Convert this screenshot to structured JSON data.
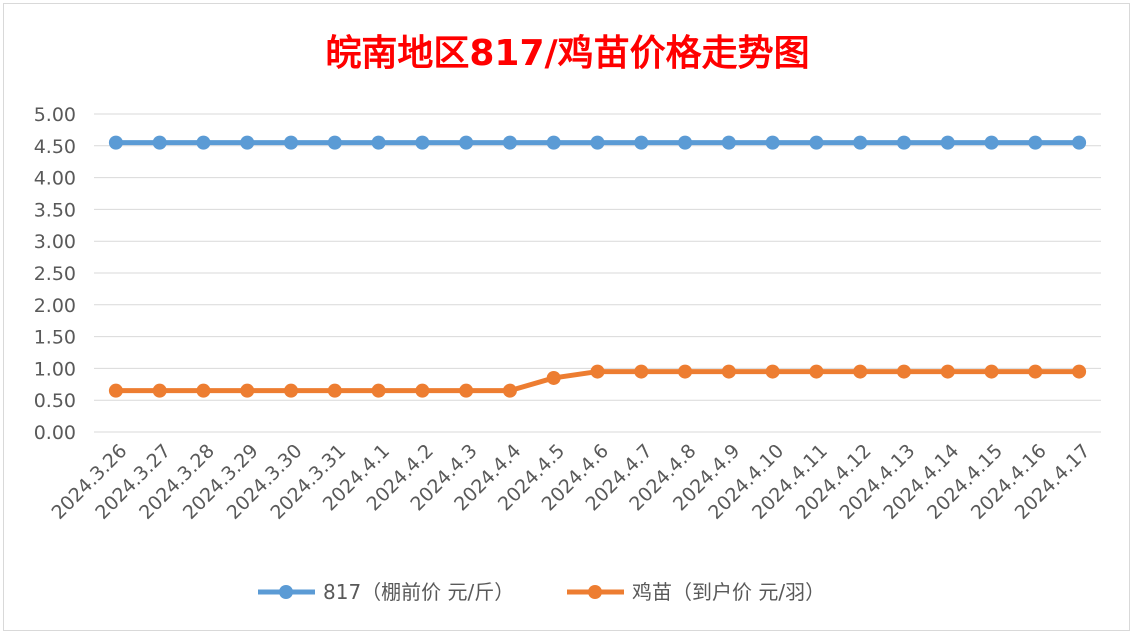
{
  "chart_data": {
    "type": "line",
    "title": "皖南地区817/鸡苗价格走势图",
    "categories": [
      "2024.3.26",
      "2024.3.27",
      "2024.3.28",
      "2024.3.29",
      "2024.3.30",
      "2024.3.31",
      "2024.4.1",
      "2024.4.2",
      "2024.4.3",
      "2024.4.4",
      "2024.4.5",
      "2024.4.6",
      "2024.4.7",
      "2024.4.8",
      "2024.4.9",
      "2024.4.10",
      "2024.4.11",
      "2024.4.12",
      "2024.4.13",
      "2024.4.14",
      "2024.4.15",
      "2024.4.16",
      "2024.4.17"
    ],
    "series": [
      {
        "name": "817（棚前价 元/斤）",
        "color": "#5b9bd5",
        "values": [
          4.55,
          4.55,
          4.55,
          4.55,
          4.55,
          4.55,
          4.55,
          4.55,
          4.55,
          4.55,
          4.55,
          4.55,
          4.55,
          4.55,
          4.55,
          4.55,
          4.55,
          4.55,
          4.55,
          4.55,
          4.55,
          4.55,
          4.55
        ]
      },
      {
        "name": "鸡苗（到户价 元/羽）",
        "color": "#ed7d31",
        "values": [
          0.65,
          0.65,
          0.65,
          0.65,
          0.65,
          0.65,
          0.65,
          0.65,
          0.65,
          0.65,
          0.85,
          0.95,
          0.95,
          0.95,
          0.95,
          0.95,
          0.95,
          0.95,
          0.95,
          0.95,
          0.95,
          0.95,
          0.95
        ]
      }
    ],
    "ylim": [
      0,
      5
    ],
    "yticks": [
      "0.00",
      "0.50",
      "1.00",
      "1.50",
      "2.00",
      "2.50",
      "3.00",
      "3.50",
      "4.00",
      "4.50",
      "5.00"
    ],
    "grid": true,
    "legend": "bottom"
  }
}
